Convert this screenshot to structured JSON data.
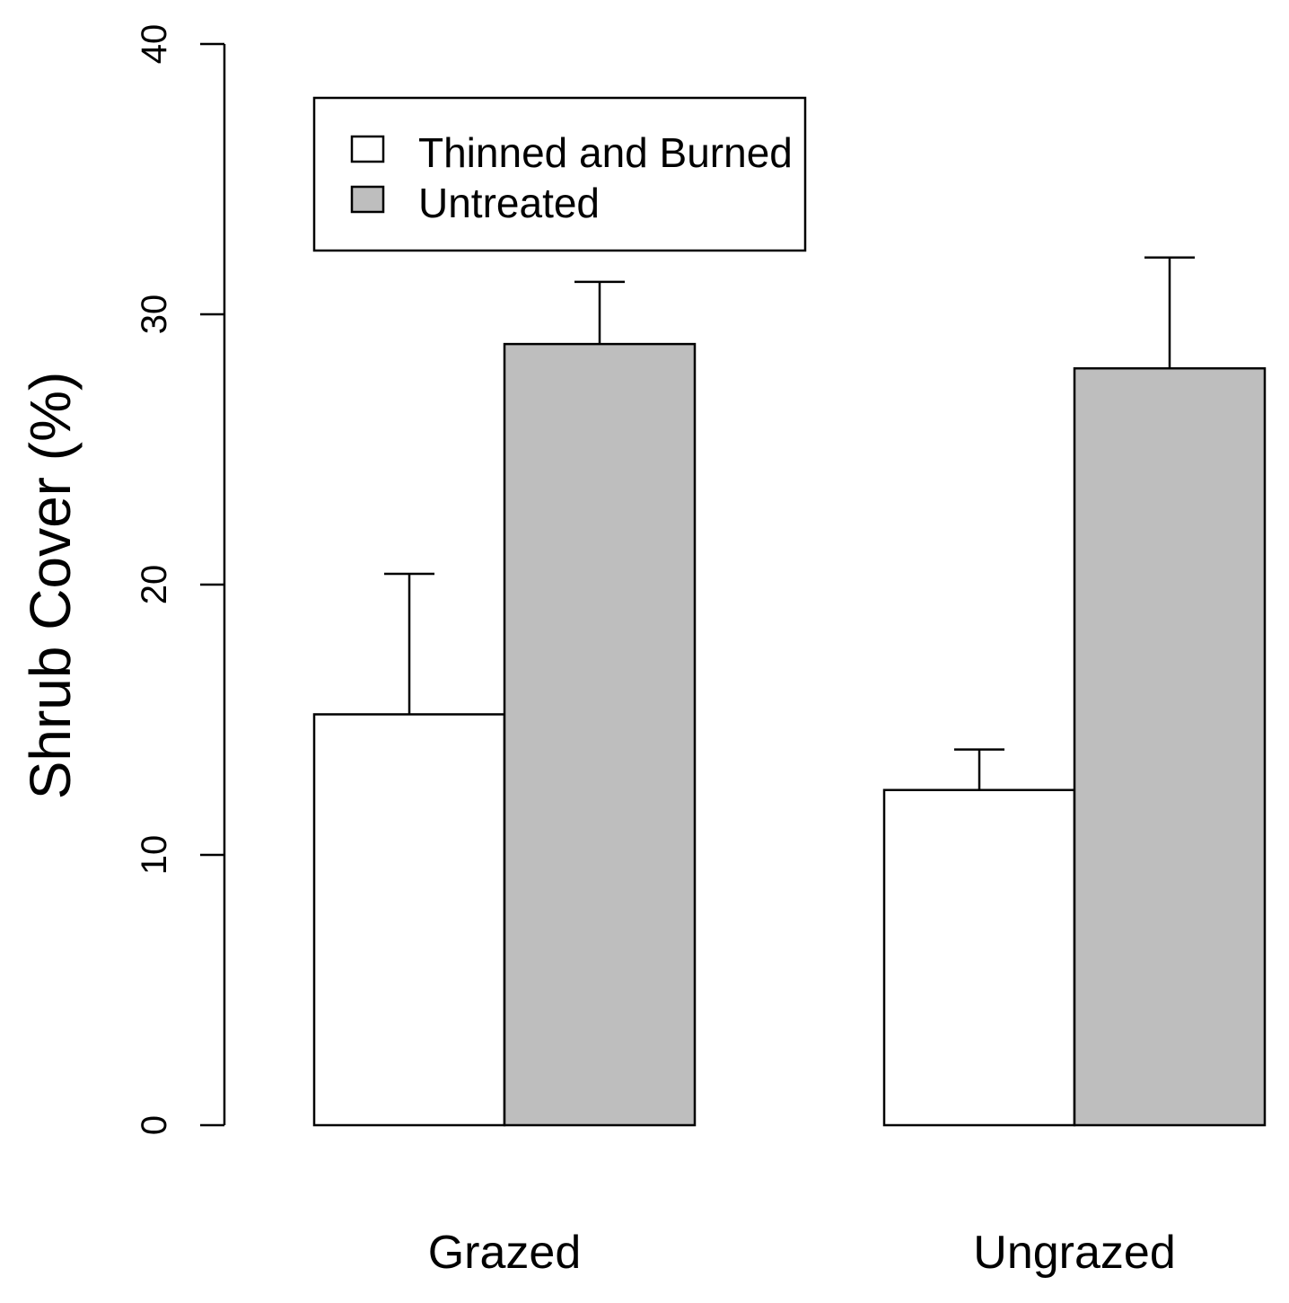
{
  "chart_data": {
    "type": "bar",
    "title": "",
    "xlabel": "",
    "ylabel": "Shrub Cover  (%)",
    "ylim": [
      0,
      40
    ],
    "yticks": [
      0,
      10,
      20,
      30,
      40
    ],
    "categories": [
      "Grazed",
      "Ungrazed"
    ],
    "series": [
      {
        "name": "Thinned and Burned",
        "color": "#ffffff",
        "values": [
          15.2,
          12.4
        ],
        "errors": [
          5.2,
          1.5
        ]
      },
      {
        "name": "Untreated",
        "color": "#bebebe",
        "values": [
          28.9,
          28.0
        ],
        "errors": [
          2.3,
          4.1
        ]
      }
    ],
    "legend_position": "top-left",
    "grid": false
  }
}
